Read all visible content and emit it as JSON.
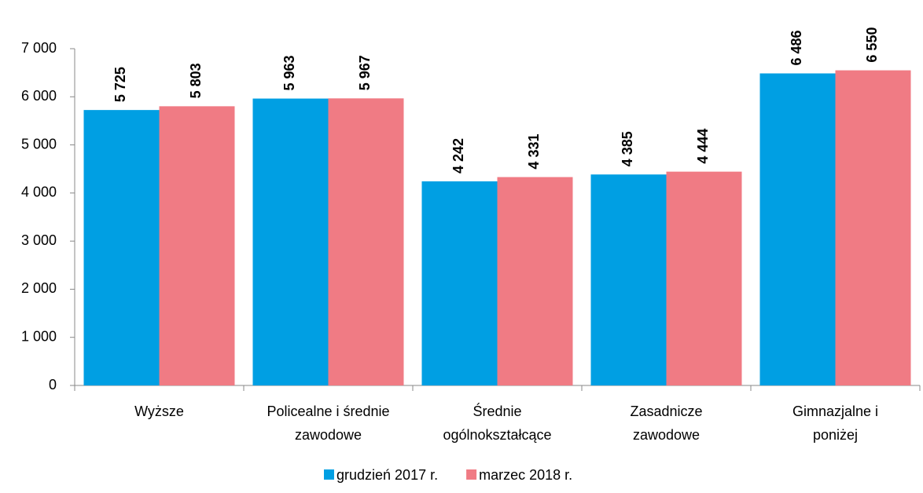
{
  "chart_data": {
    "type": "bar",
    "categories": [
      "Wyższe",
      "Policealne i średnie\nzawodowe",
      "Średnie\nogólnokształcące",
      "Zasadnicze\nzawodowe",
      "Gimnazjalne i\nponiżej"
    ],
    "series": [
      {
        "name": "grudzień 2017 r.",
        "color": "#009fe3",
        "values": [
          5725,
          5963,
          4242,
          4385,
          6486
        ],
        "value_labels": [
          "5 725",
          "5 963",
          "4 242",
          "4 385",
          "6 486"
        ]
      },
      {
        "name": "marzec 2018 r.",
        "color": "#f07b84",
        "values": [
          5803,
          5967,
          4331,
          4444,
          6550
        ],
        "value_labels": [
          "5 803",
          "5 967",
          "4 331",
          "4 444",
          "6 550"
        ]
      }
    ],
    "ylim": [
      0,
      7000
    ],
    "yticks": [
      {
        "value": 0,
        "label": "0"
      },
      {
        "value": 1000,
        "label": "1 000"
      },
      {
        "value": 2000,
        "label": "2 000"
      },
      {
        "value": 3000,
        "label": "3 000"
      },
      {
        "value": 4000,
        "label": "4 000"
      },
      {
        "value": 5000,
        "label": "5 000"
      },
      {
        "value": 6000,
        "label": "6 000"
      },
      {
        "value": 7000,
        "label": "7 000"
      }
    ],
    "legend": "bottom"
  }
}
